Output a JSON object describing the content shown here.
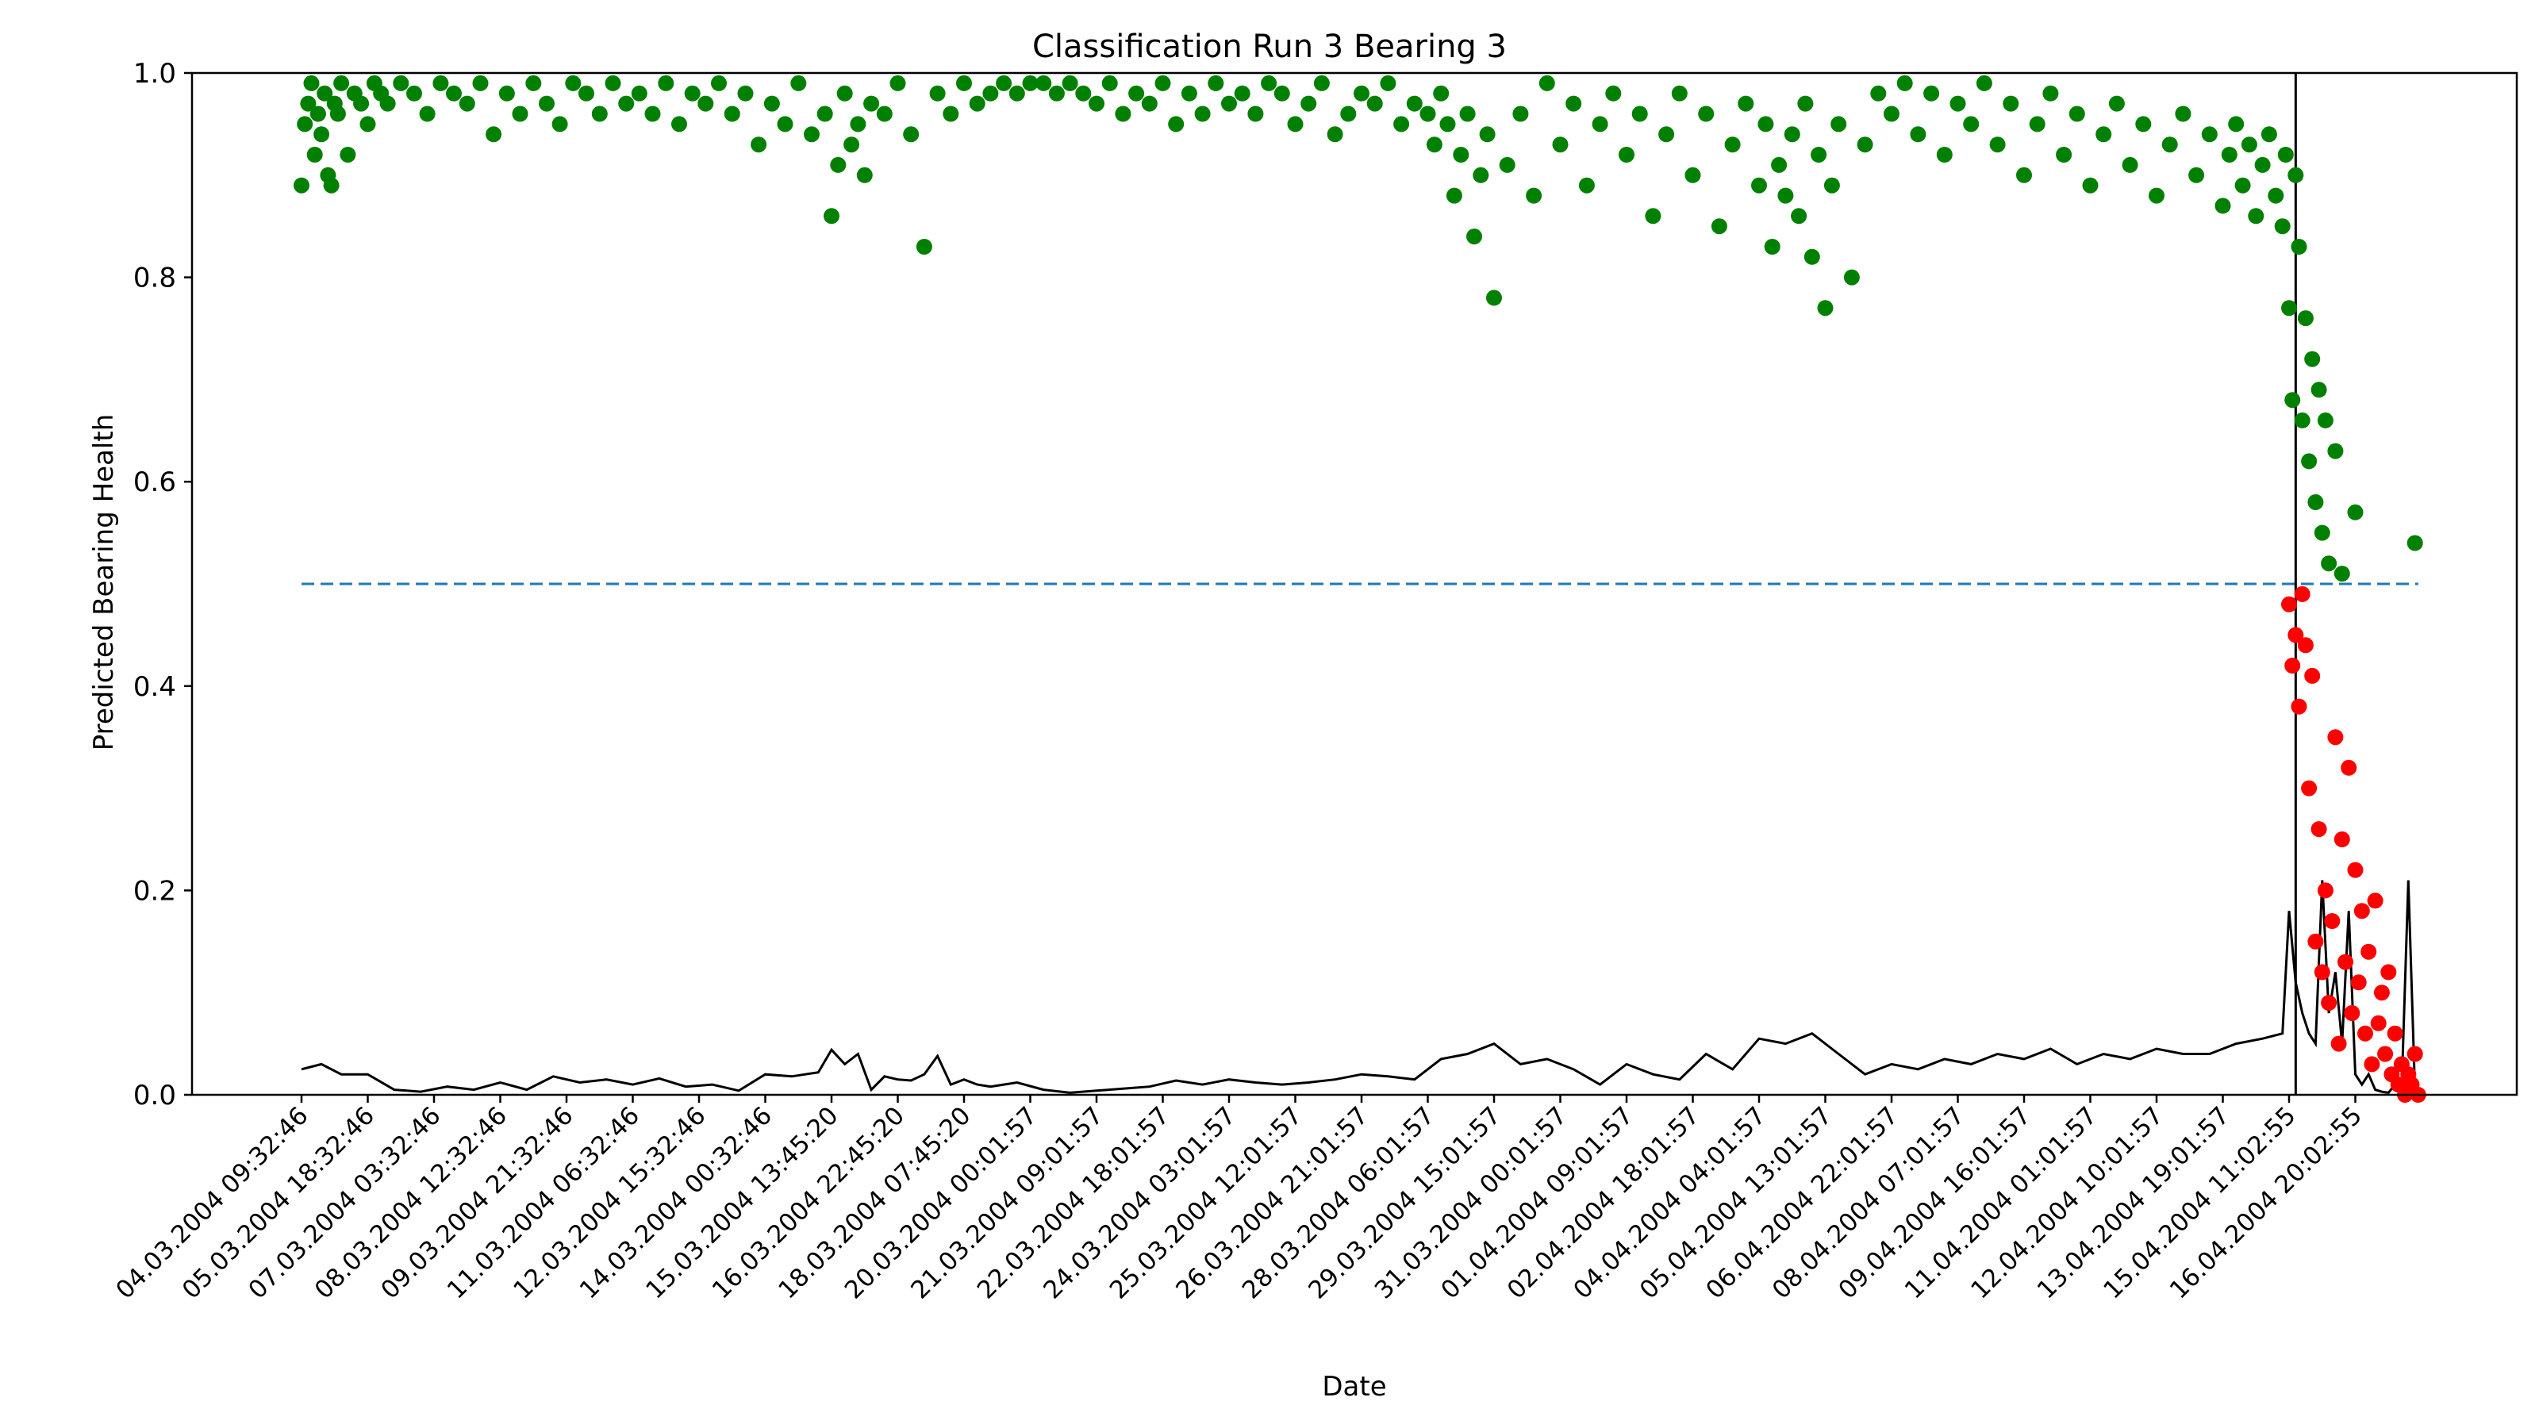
{
  "chart_data": {
    "type": "scatter",
    "title": "Classification Run 3 Bearing 3",
    "xlabel": "Date",
    "ylabel": "Predicted Bearing Health",
    "ylim": [
      0,
      1
    ],
    "yticks": [
      "0.0",
      "0.2",
      "0.4",
      "0.6",
      "0.8",
      "1.0"
    ],
    "xtick_labels": [
      "04.03.2004 09:32:46",
      "05.03.2004 18:32:46",
      "07.03.2004 03:32:46",
      "08.03.2004 12:32:46",
      "09.03.2004 21:32:46",
      "11.03.2004 06:32:46",
      "12.03.2004 15:32:46",
      "14.03.2004 00:32:46",
      "15.03.2004 13:45:20",
      "16.03.2004 22:45:20",
      "18.03.2004 07:45:20",
      "20.03.2004 00:01:57",
      "21.03.2004 09:01:57",
      "22.03.2004 18:01:57",
      "24.03.2004 03:01:57",
      "25.03.2004 12:01:57",
      "26.03.2004 21:01:57",
      "28.03.2004 06:01:57",
      "29.03.2004 15:01:57",
      "31.03.2004 00:01:57",
      "01.04.2004 09:01:57",
      "02.04.2004 18:01:57",
      "04.04.2004 04:01:57",
      "05.04.2004 13:01:57",
      "06.04.2004 22:01:57",
      "08.04.2004 07:01:57",
      "09.04.2004 16:01:57",
      "11.04.2004 01:01:57",
      "12.04.2004 10:01:57",
      "13.04.2004 19:01:57",
      "15.04.2004 11:02:55",
      "16.04.2004 20:02:55"
    ],
    "threshold": 0.5,
    "vertical_marker_index": 30.1,
    "x_index_range": [
      0,
      32
    ],
    "colors": {
      "healthy": "#008000",
      "faulty": "#ff0000",
      "threshold": "#1f77b4",
      "line": "#000000"
    },
    "series": [
      {
        "kind": "scatter",
        "class": "healthy",
        "points_x": [
          0.0,
          0.05,
          0.1,
          0.15,
          0.2,
          0.25,
          0.3,
          0.35,
          0.4,
          0.45,
          0.5,
          0.55,
          0.6,
          0.7,
          0.8,
          0.9,
          1.0,
          1.1,
          1.2,
          1.3,
          1.5,
          1.7,
          1.9,
          2.1,
          2.3,
          2.5,
          2.7,
          2.9,
          3.1,
          3.3,
          3.5,
          3.7,
          3.9,
          4.1,
          4.3,
          4.5,
          4.7,
          4.9,
          5.1,
          5.3,
          5.5,
          5.7,
          5.9,
          6.1,
          6.3,
          6.5,
          6.7,
          6.9,
          7.1,
          7.3,
          7.5,
          7.7,
          7.9,
          8.0,
          8.1,
          8.2,
          8.3,
          8.4,
          8.5,
          8.6,
          8.8,
          9.0,
          9.2,
          9.4,
          9.6,
          9.8,
          10.0,
          10.2,
          10.4,
          10.6,
          10.8,
          11.0,
          11.2,
          11.4,
          11.6,
          11.8,
          12.0,
          12.2,
          12.4,
          12.6,
          12.8,
          13.0,
          13.2,
          13.4,
          13.6,
          13.8,
          14.0,
          14.2,
          14.4,
          14.6,
          14.8,
          15.0,
          15.2,
          15.4,
          15.6,
          15.8,
          16.0,
          16.2,
          16.4,
          16.6,
          16.8,
          17.0,
          17.1,
          17.2,
          17.3,
          17.4,
          17.5,
          17.6,
          17.7,
          17.8,
          17.9,
          18.0,
          18.2,
          18.4,
          18.6,
          18.8,
          19.0,
          19.2,
          19.4,
          19.6,
          19.8,
          20.0,
          20.2,
          20.4,
          20.6,
          20.8,
          21.0,
          21.2,
          21.4,
          21.6,
          21.8,
          22.0,
          22.1,
          22.2,
          22.3,
          22.4,
          22.5,
          22.6,
          22.7,
          22.8,
          22.9,
          23.0,
          23.1,
          23.2,
          23.4,
          23.6,
          23.8,
          24.0,
          24.2,
          24.4,
          24.6,
          24.8,
          25.0,
          25.2,
          25.4,
          25.6,
          25.8,
          26.0,
          26.2,
          26.4,
          26.6,
          26.8,
          27.0,
          27.2,
          27.4,
          27.6,
          27.8,
          28.0,
          28.2,
          28.4,
          28.6,
          28.8,
          29.0,
          29.1,
          29.2,
          29.3,
          29.4,
          29.5,
          29.6,
          29.7,
          29.8,
          29.9,
          29.95,
          30.0,
          30.05,
          30.1,
          30.15,
          30.2,
          30.25,
          30.3,
          30.35,
          30.4,
          30.45,
          30.5,
          30.55,
          30.6,
          30.7,
          30.8,
          31.0,
          31.9
        ],
        "points_y": [
          0.89,
          0.95,
          0.97,
          0.99,
          0.92,
          0.96,
          0.94,
          0.98,
          0.9,
          0.89,
          0.97,
          0.96,
          0.99,
          0.92,
          0.98,
          0.97,
          0.95,
          0.99,
          0.98,
          0.97,
          0.99,
          0.98,
          0.96,
          0.99,
          0.98,
          0.97,
          0.99,
          0.94,
          0.98,
          0.96,
          0.99,
          0.97,
          0.95,
          0.99,
          0.98,
          0.96,
          0.99,
          0.97,
          0.98,
          0.96,
          0.99,
          0.95,
          0.98,
          0.97,
          0.99,
          0.96,
          0.98,
          0.93,
          0.97,
          0.95,
          0.99,
          0.94,
          0.96,
          0.86,
          0.91,
          0.98,
          0.93,
          0.95,
          0.9,
          0.97,
          0.96,
          0.99,
          0.94,
          0.83,
          0.98,
          0.96,
          0.99,
          0.97,
          0.98,
          0.99,
          0.98,
          0.99,
          0.99,
          0.98,
          0.99,
          0.98,
          0.97,
          0.99,
          0.96,
          0.98,
          0.97,
          0.99,
          0.95,
          0.98,
          0.96,
          0.99,
          0.97,
          0.98,
          0.96,
          0.99,
          0.98,
          0.95,
          0.97,
          0.99,
          0.94,
          0.96,
          0.98,
          0.97,
          0.99,
          0.95,
          0.97,
          0.96,
          0.93,
          0.98,
          0.95,
          0.88,
          0.92,
          0.96,
          0.84,
          0.9,
          0.94,
          0.78,
          0.91,
          0.96,
          0.88,
          0.99,
          0.93,
          0.97,
          0.89,
          0.95,
          0.98,
          0.92,
          0.96,
          0.86,
          0.94,
          0.98,
          0.9,
          0.96,
          0.85,
          0.93,
          0.97,
          0.89,
          0.95,
          0.83,
          0.91,
          0.88,
          0.94,
          0.86,
          0.97,
          0.82,
          0.92,
          0.77,
          0.89,
          0.95,
          0.8,
          0.93,
          0.98,
          0.96,
          0.99,
          0.94,
          0.98,
          0.92,
          0.97,
          0.95,
          0.99,
          0.93,
          0.97,
          0.9,
          0.95,
          0.98,
          0.92,
          0.96,
          0.89,
          0.94,
          0.97,
          0.91,
          0.95,
          0.88,
          0.93,
          0.96,
          0.9,
          0.94,
          0.87,
          0.92,
          0.95,
          0.89,
          0.93,
          0.86,
          0.91,
          0.94,
          0.88,
          0.85,
          0.92,
          0.77,
          0.68,
          0.9,
          0.83,
          0.66,
          0.76,
          0.62,
          0.72,
          0.58,
          0.69,
          0.55,
          0.66,
          0.52,
          0.63,
          0.51,
          0.57,
          0.54,
          0.6,
          0.54,
          0.5,
          0.98
        ]
      },
      {
        "kind": "scatter",
        "class": "faulty",
        "points_x": [
          30.0,
          30.05,
          30.1,
          30.15,
          30.2,
          30.25,
          30.3,
          30.35,
          30.4,
          30.45,
          30.5,
          30.55,
          30.6,
          30.65,
          30.7,
          30.75,
          30.8,
          30.85,
          30.9,
          30.95,
          31.0,
          31.05,
          31.1,
          31.15,
          31.2,
          31.25,
          31.3,
          31.35,
          31.4,
          31.45,
          31.5,
          31.55,
          31.6,
          31.65,
          31.7,
          31.75,
          31.8,
          31.85,
          31.9,
          31.95
        ],
        "points_y": [
          0.48,
          0.42,
          0.45,
          0.38,
          0.49,
          0.44,
          0.3,
          0.41,
          0.15,
          0.26,
          0.12,
          0.2,
          0.09,
          0.17,
          0.35,
          0.05,
          0.25,
          0.13,
          0.32,
          0.08,
          0.22,
          0.11,
          0.18,
          0.06,
          0.14,
          0.03,
          0.19,
          0.07,
          0.1,
          0.04,
          0.12,
          0.02,
          0.06,
          0.01,
          0.03,
          0.0,
          0.02,
          0.01,
          0.04,
          0.0
        ]
      },
      {
        "kind": "line",
        "class": "rolling",
        "x": [
          0,
          0.3,
          0.6,
          1.0,
          1.4,
          1.8,
          2.2,
          2.6,
          3.0,
          3.4,
          3.8,
          4.2,
          4.6,
          5.0,
          5.4,
          5.8,
          6.2,
          6.6,
          7.0,
          7.4,
          7.8,
          8.0,
          8.2,
          8.4,
          8.6,
          8.8,
          9.0,
          9.2,
          9.4,
          9.6,
          9.8,
          10.0,
          10.2,
          10.4,
          10.8,
          11.2,
          11.6,
          12.0,
          12.4,
          12.8,
          13.2,
          13.6,
          14.0,
          14.4,
          14.8,
          15.2,
          15.6,
          16.0,
          16.4,
          16.8,
          17.2,
          17.6,
          18.0,
          18.4,
          18.8,
          19.2,
          19.6,
          20.0,
          20.4,
          20.8,
          21.2,
          21.6,
          22.0,
          22.4,
          22.8,
          23.2,
          23.6,
          24.0,
          24.4,
          24.8,
          25.2,
          25.6,
          26.0,
          26.4,
          26.8,
          27.2,
          27.6,
          28.0,
          28.4,
          28.8,
          29.2,
          29.6,
          29.9,
          30.0,
          30.1,
          30.2,
          30.3,
          30.4,
          30.5,
          30.6,
          30.7,
          30.8,
          30.9,
          31.0,
          31.1,
          31.2,
          31.3,
          31.4,
          31.5,
          31.6,
          31.7,
          31.8,
          31.9
        ],
        "y": [
          0.025,
          0.03,
          0.02,
          0.02,
          0.005,
          0.003,
          0.008,
          0.005,
          0.012,
          0.005,
          0.018,
          0.012,
          0.015,
          0.01,
          0.016,
          0.008,
          0.01,
          0.004,
          0.02,
          0.018,
          0.022,
          0.044,
          0.03,
          0.04,
          0.005,
          0.018,
          0.015,
          0.014,
          0.02,
          0.038,
          0.01,
          0.015,
          0.01,
          0.008,
          0.012,
          0.005,
          0.002,
          0.004,
          0.006,
          0.008,
          0.014,
          0.01,
          0.015,
          0.012,
          0.01,
          0.012,
          0.015,
          0.02,
          0.018,
          0.015,
          0.035,
          0.04,
          0.05,
          0.03,
          0.035,
          0.025,
          0.01,
          0.03,
          0.02,
          0.015,
          0.04,
          0.025,
          0.055,
          0.05,
          0.06,
          0.04,
          0.02,
          0.03,
          0.025,
          0.035,
          0.03,
          0.04,
          0.035,
          0.045,
          0.03,
          0.04,
          0.035,
          0.045,
          0.04,
          0.04,
          0.05,
          0.055,
          0.06,
          0.18,
          0.11,
          0.08,
          0.06,
          0.05,
          0.21,
          0.08,
          0.12,
          0.05,
          0.18,
          0.02,
          0.01,
          0.02,
          0.005,
          0.003,
          0.002,
          0.01,
          0.005,
          0.21,
          0.003
        ]
      }
    ]
  }
}
